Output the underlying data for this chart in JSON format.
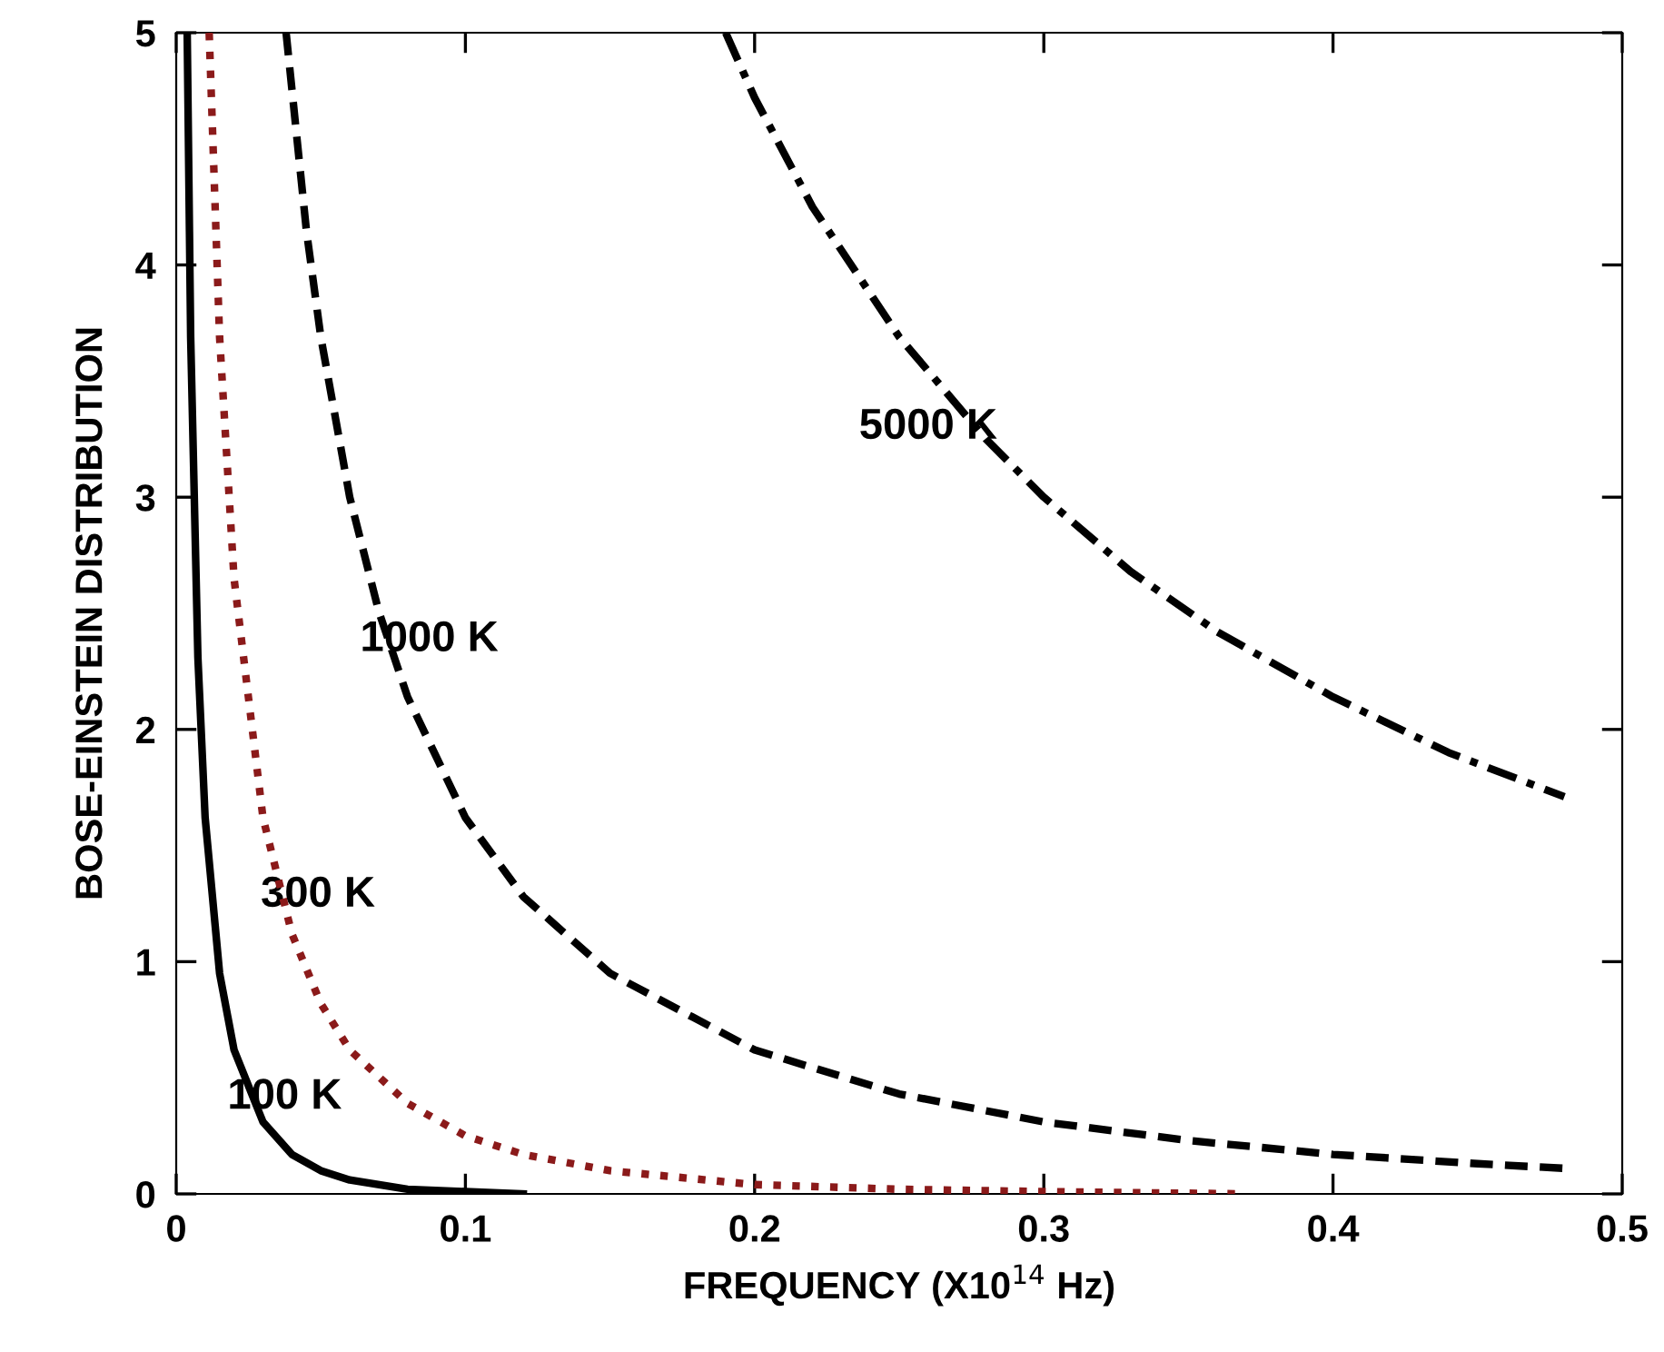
{
  "chart_data": {
    "type": "line",
    "xlabel": "FREQUENCY (X10$^{14}$ Hz)",
    "ylabel": "BOSE-EINSTEIN DISTRIBUTION",
    "xlim": [
      0,
      0.5
    ],
    "ylim": [
      0,
      5
    ],
    "xticks": [
      0,
      0.1,
      0.2,
      0.3,
      0.4,
      0.5
    ],
    "yticks": [
      0,
      1,
      2,
      3,
      4,
      5
    ],
    "grid": false,
    "legend": false,
    "marker": "none",
    "series": [
      {
        "color": "#000000",
        "line_style": "solid",
        "x": [
          0.0038,
          0.005,
          0.0075,
          0.01,
          0.015,
          0.02,
          0.03,
          0.04,
          0.05,
          0.06,
          0.08,
          0.1,
          0.12
        ],
        "values": [
          5.0,
          3.69,
          2.31,
          1.62,
          0.95,
          0.62,
          0.31,
          0.17,
          0.1,
          0.06,
          0.02,
          0.01,
          0.0
        ]
      },
      {
        "color": "#8b1a1a",
        "line_style": "dotted",
        "x": [
          0.0114,
          0.015,
          0.02,
          0.03,
          0.04,
          0.05,
          0.06,
          0.08,
          0.1,
          0.12,
          0.15,
          0.2,
          0.25,
          0.3,
          0.37
        ],
        "values": [
          5.0,
          3.69,
          2.65,
          1.62,
          1.12,
          0.82,
          0.62,
          0.39,
          0.25,
          0.17,
          0.1,
          0.04,
          0.02,
          0.01,
          0.0
        ]
      },
      {
        "color": "#000000",
        "line_style": "dashed",
        "x": [
          0.038,
          0.045,
          0.05,
          0.06,
          0.07,
          0.08,
          0.1,
          0.12,
          0.15,
          0.2,
          0.25,
          0.3,
          0.35,
          0.4,
          0.45,
          0.48
        ],
        "values": [
          5.0,
          4.15,
          3.69,
          3.0,
          2.51,
          2.14,
          1.62,
          1.28,
          0.95,
          0.62,
          0.43,
          0.31,
          0.23,
          0.17,
          0.13,
          0.11
        ]
      },
      {
        "color": "#000000",
        "line_style": "dashdot",
        "x": [
          0.19,
          0.2,
          0.22,
          0.25,
          0.28,
          0.3,
          0.33,
          0.36,
          0.4,
          0.44,
          0.48
        ],
        "values": [
          5.0,
          4.72,
          4.25,
          3.69,
          3.25,
          3.0,
          2.68,
          2.42,
          2.14,
          1.9,
          1.71
        ]
      }
    ],
    "annotations": [
      "5000 K",
      "1000 K",
      "300 K",
      "100 K"
    ]
  }
}
